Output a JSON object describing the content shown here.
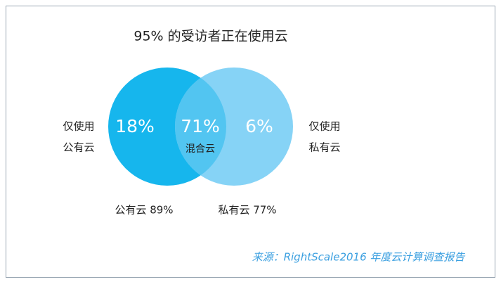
{
  "title": "95% 的受访者正在使用云",
  "venn": {
    "left": {
      "label_lines": [
        "仅使用",
        "公有云"
      ],
      "value": "18%",
      "total": "公有云 89%"
    },
    "overlap": {
      "value": "71%",
      "label": "混合云"
    },
    "right": {
      "label_lines": [
        "仅使用",
        "私有云"
      ],
      "value": "6%",
      "total": "私有云 77%"
    }
  },
  "source": "来源：RightScale2016 年度云计算调查报告"
}
